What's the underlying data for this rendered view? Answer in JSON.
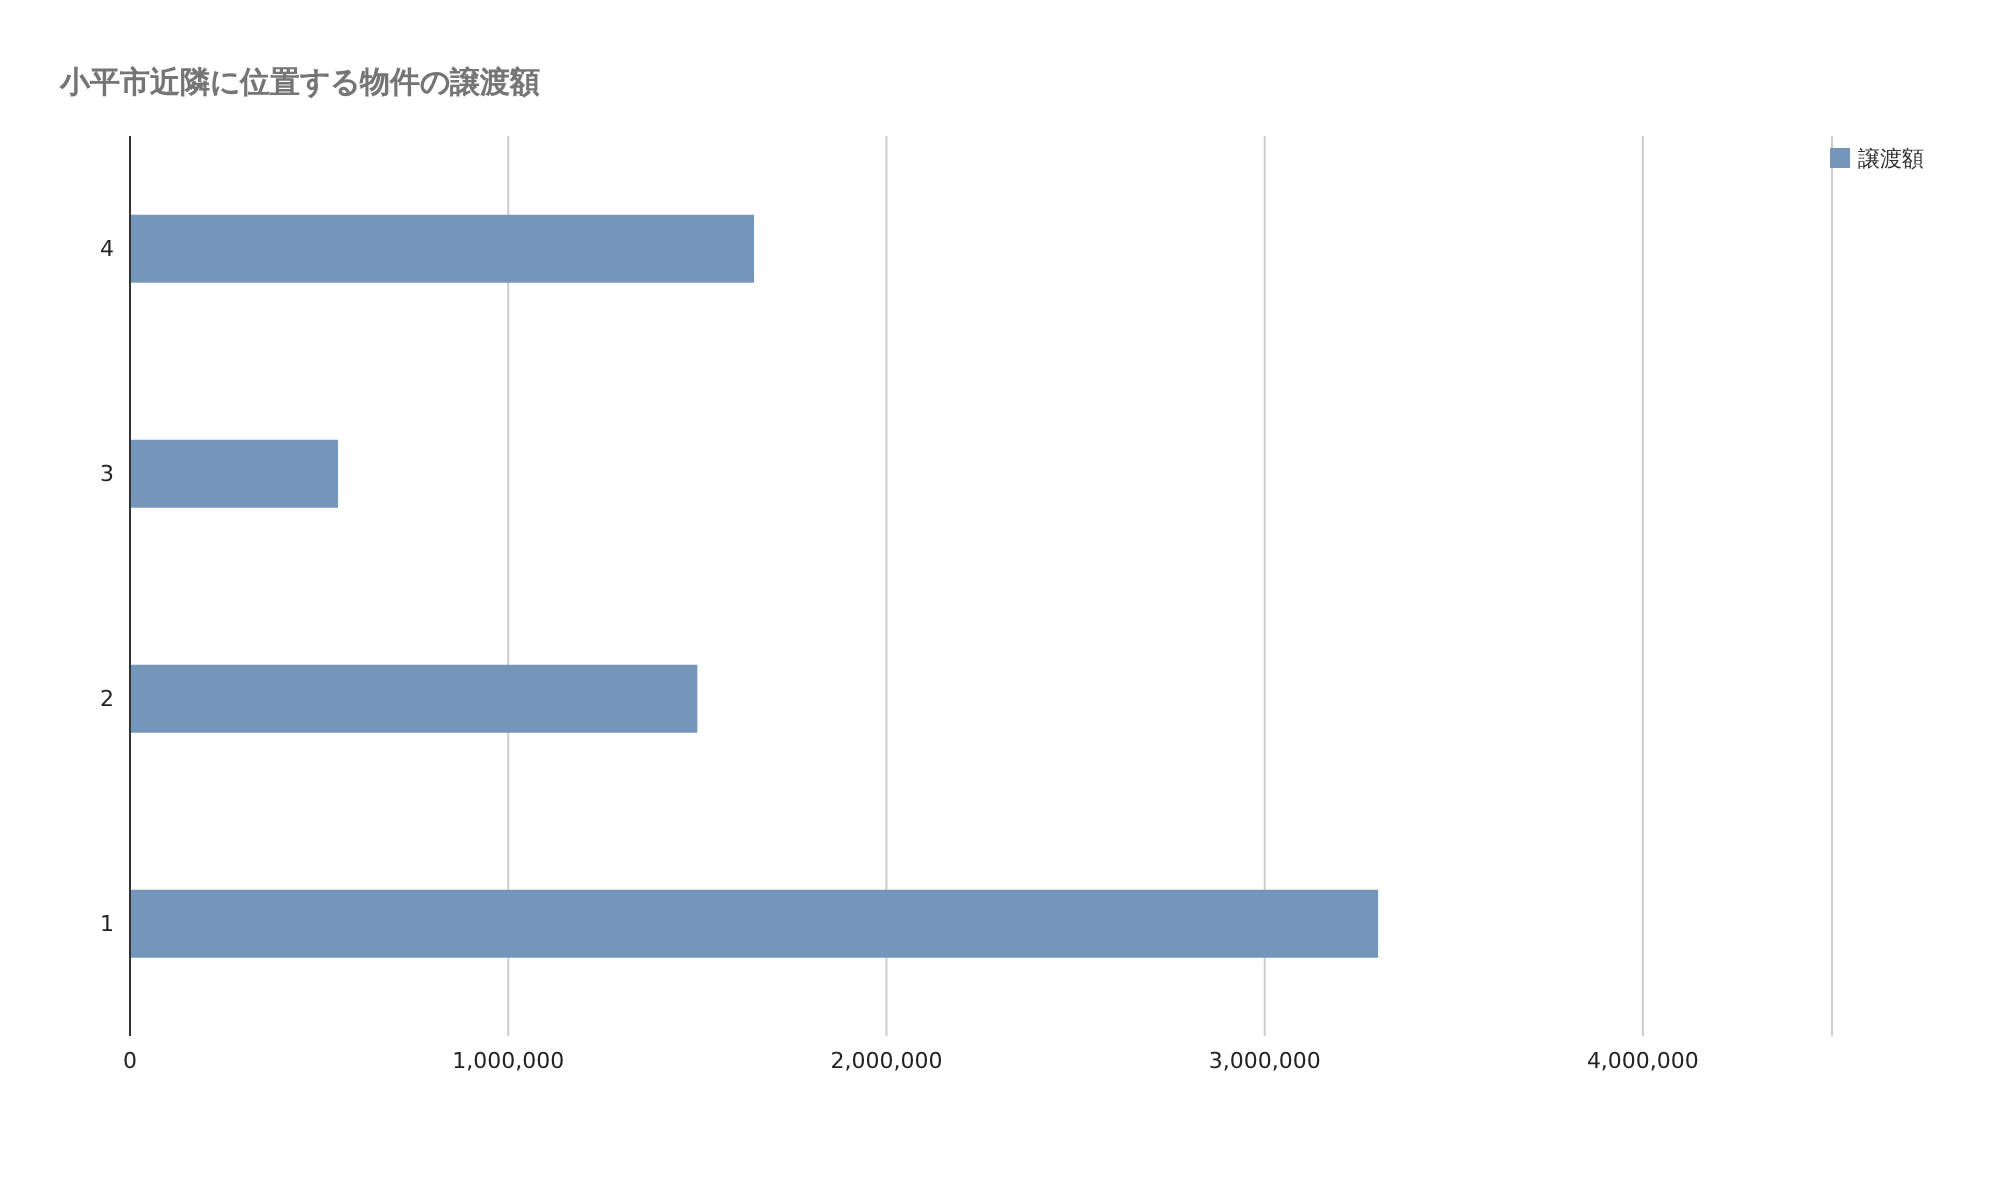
{
  "chart_data": {
    "type": "bar",
    "orientation": "horizontal",
    "title": "小平市近隣に位置する物件の譲渡額",
    "categories": [
      "4",
      "3",
      "2",
      "1"
    ],
    "series": [
      {
        "name": "譲渡額",
        "color": "#7496bb",
        "values": [
          1650000,
          550000,
          1500000,
          3300000
        ]
      }
    ],
    "xlim": [
      0,
      4500000
    ],
    "xticks": [
      {
        "value": 0,
        "label": "0"
      },
      {
        "value": 1000000,
        "label": "1,000,000"
      },
      {
        "value": 2000000,
        "label": "2,000,000"
      },
      {
        "value": 3000000,
        "label": "3,000,000"
      },
      {
        "value": 4000000,
        "label": "4,000,000"
      }
    ],
    "grid": "x",
    "legend": "top right"
  }
}
